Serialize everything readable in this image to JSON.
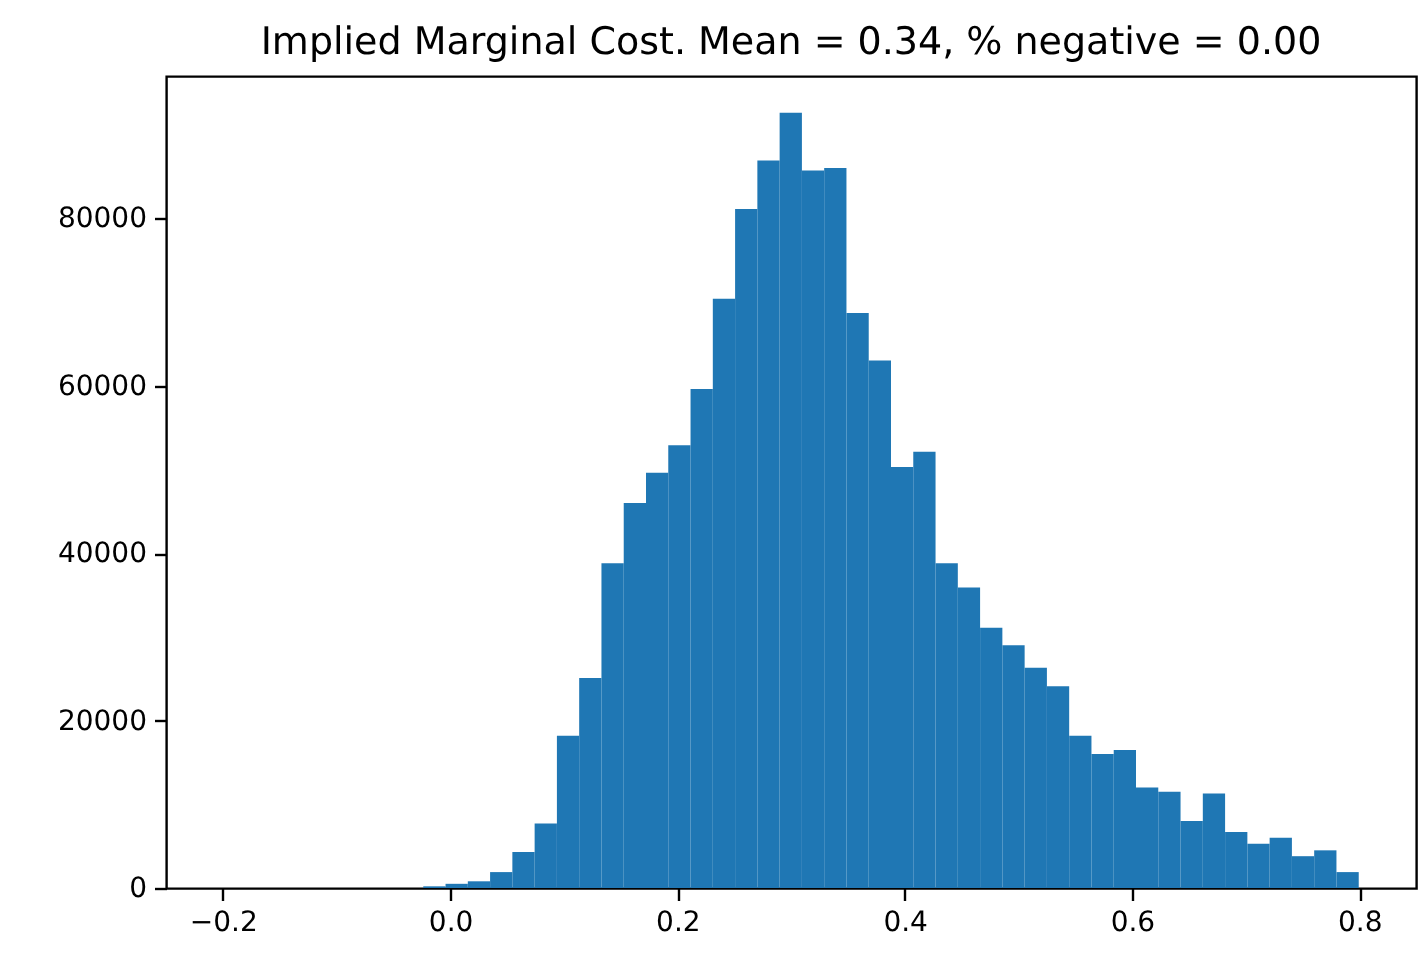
{
  "chart_data": {
    "type": "histogram",
    "title": "Implied Marginal Cost. Mean = 0.34, % negative = 0.00",
    "bins": [
      -0.2,
      -0.1804,
      -0.1608,
      -0.1412,
      -0.1216,
      -0.102,
      -0.0824,
      -0.0628,
      -0.0432,
      -0.0236,
      -0.004,
      0.0156,
      0.0352,
      0.0548,
      0.0744,
      0.094,
      0.1136,
      0.1332,
      0.1528,
      0.1724,
      0.192,
      0.2116,
      0.2312,
      0.2508,
      0.2704,
      0.29,
      0.3096,
      0.3292,
      0.3488,
      0.3684,
      0.388,
      0.4076,
      0.4272,
      0.4468,
      0.4664,
      0.486,
      0.5056,
      0.5252,
      0.5448,
      0.5644,
      0.584,
      0.6036,
      0.6232,
      0.6428,
      0.6624,
      0.682,
      0.7016,
      0.7212,
      0.7408,
      0.7604,
      0.78,
      0.7996
    ],
    "values": [
      0,
      0,
      0,
      0,
      0,
      0,
      0,
      0,
      0,
      200,
      500,
      800,
      1900,
      4300,
      7700,
      18200,
      25100,
      38800,
      46000,
      49600,
      52900,
      59600,
      70400,
      81100,
      86900,
      92600,
      85700,
      86000,
      68700,
      63000,
      50300,
      52100,
      38800,
      35900,
      31100,
      29000,
      26300,
      24100,
      18200,
      16000,
      16500,
      12000,
      11500,
      8000,
      11300,
      6700,
      5300,
      6000,
      3800,
      4500,
      1900
    ],
    "color": "#1f77b4",
    "xlim": [
      -0.25,
      0.85
    ],
    "ylim": [
      0,
      97000
    ],
    "xticks": [
      {
        "value": -0.2,
        "label": "−0.2"
      },
      {
        "value": 0,
        "label": "0.0"
      },
      {
        "value": 0.2,
        "label": "0.2"
      },
      {
        "value": 0.4,
        "label": "0.4"
      },
      {
        "value": 0.6,
        "label": "0.6"
      },
      {
        "value": 0.8,
        "label": "0.8"
      }
    ],
    "yticks": [
      0,
      20000,
      40000,
      60000,
      80000
    ]
  }
}
